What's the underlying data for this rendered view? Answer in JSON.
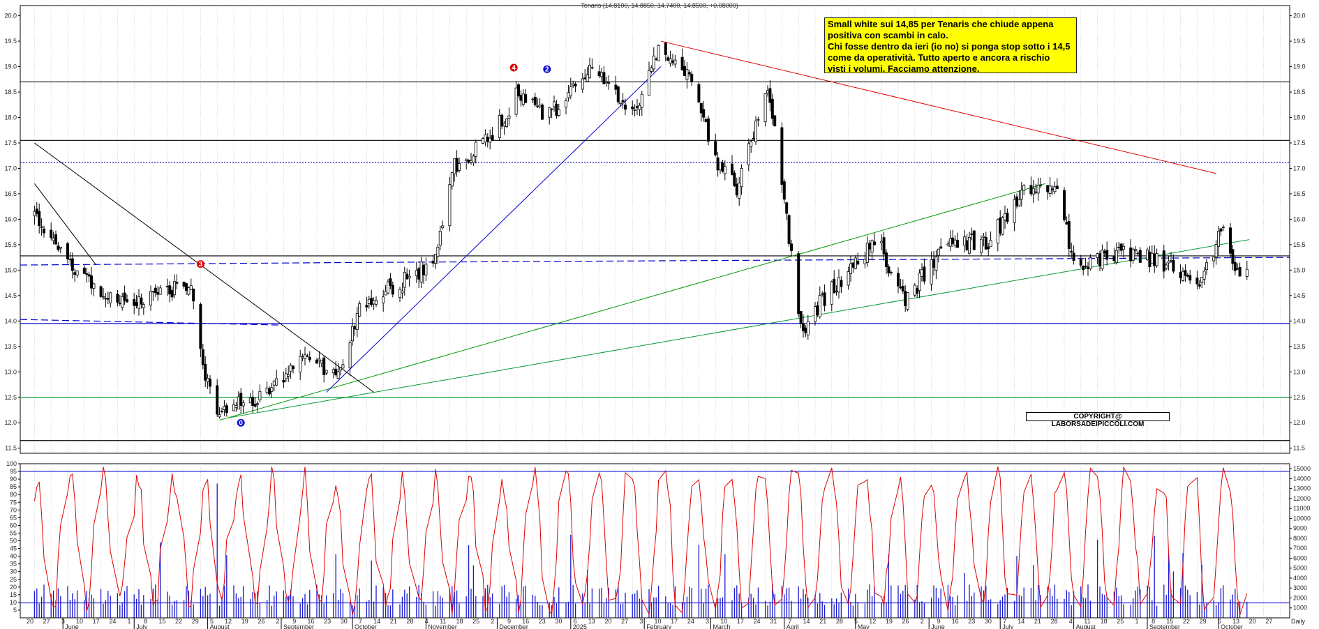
{
  "header": {
    "title": "Tenaris (14.8100, 14.8850, 14.7400, 14.8500, +0.08000)"
  },
  "note": {
    "lines": [
      "Small white sui 14,85 per Tenaris che chiude appena",
      "positiva con scambi in calo.",
      "Chi fosse dentro da ieri (io no) si ponga stop sotto i 14,5",
      "come da operatività. Tutto aperto e ancora a rischio",
      "visti i volumi. Facciamo attenzione."
    ],
    "background": "#ffff00"
  },
  "copyright": "COPYRIGHT@ LABORSADEIPICCOLI.COM",
  "wave_markers": [
    {
      "label": "4",
      "color": "#e00000"
    },
    {
      "label": "2",
      "color": "#1010d0"
    },
    {
      "label": "3",
      "color": "#e00000"
    },
    {
      "label": "0",
      "color": "#1010d0"
    }
  ],
  "time_axis": {
    "months": [
      "June",
      "July",
      "August",
      "September",
      "October",
      "November",
      "December",
      "2025",
      "February",
      "March",
      "April",
      "May",
      "June",
      "July",
      "August",
      "September",
      "October"
    ],
    "days": [
      "20",
      "27",
      "3",
      "10",
      "17",
      "24",
      "1",
      "8",
      "15",
      "22",
      "29",
      "5",
      "12",
      "19",
      "26",
      "2",
      "9",
      "16",
      "23",
      "30",
      "7",
      "14",
      "21",
      "28",
      "4",
      "11",
      "18",
      "25",
      "2",
      "9",
      "16",
      "23",
      "30",
      "6",
      "13",
      "20",
      "27",
      "3",
      "10",
      "17",
      "24",
      "3",
      "10",
      "17",
      "24",
      "31",
      "7",
      "14",
      "21",
      "28",
      "5",
      "12",
      "19",
      "26",
      "2",
      "9",
      "16",
      "23",
      "30",
      "7",
      "14",
      "21",
      "28",
      "4",
      "11",
      "18",
      "25",
      "1",
      "8",
      "15",
      "22",
      "29",
      "6",
      "13",
      "20",
      "27"
    ],
    "end_label": "Daily"
  },
  "chart_data": [
    {
      "type": "candlestick",
      "name": "price",
      "title": "Tenaris (14.8100, 14.8850, 14.7400, 14.8500, +0.08000)",
      "ylim": [
        11.4,
        20.2
      ],
      "yticks": [
        11.5,
        12.0,
        12.5,
        13.0,
        13.5,
        14.0,
        14.5,
        15.0,
        15.5,
        16.0,
        16.5,
        17.0,
        17.5,
        18.0,
        18.5,
        19.0,
        19.5,
        20.0
      ],
      "grid": true,
      "last_bar": {
        "open": 14.81,
        "high": 14.885,
        "low": 14.74,
        "close": 14.85,
        "change": 0.08
      },
      "key_points": [
        {
          "date": "2024-05-20",
          "close": 16.1
        },
        {
          "date": "2024-06-05",
          "close": 15.1
        },
        {
          "date": "2024-06-25",
          "close": 14.3
        },
        {
          "date": "2024-07-25",
          "close": 14.7
        },
        {
          "date": "2024-07-31",
          "close": 13.0
        },
        {
          "date": "2024-08-05",
          "close": 12.3
        },
        {
          "date": "2024-08-25",
          "close": 12.5
        },
        {
          "date": "2024-09-10",
          "close": 13.2
        },
        {
          "date": "2024-09-25",
          "close": 13.0
        },
        {
          "date": "2024-10-05",
          "close": 14.4
        },
        {
          "date": "2024-10-20",
          "close": 14.7
        },
        {
          "date": "2024-11-05",
          "close": 15.2
        },
        {
          "date": "2024-11-12",
          "close": 17.0
        },
        {
          "date": "2024-11-28",
          "close": 17.6
        },
        {
          "date": "2024-12-10",
          "close": 18.5
        },
        {
          "date": "2024-12-22",
          "close": 18.0
        },
        {
          "date": "2025-01-10",
          "close": 19.0
        },
        {
          "date": "2025-01-27",
          "close": 18.0
        },
        {
          "date": "2025-02-08",
          "close": 19.4
        },
        {
          "date": "2025-02-20",
          "close": 18.8
        },
        {
          "date": "2025-03-05",
          "close": 17.0
        },
        {
          "date": "2025-03-12",
          "close": 16.6
        },
        {
          "date": "2025-03-25",
          "close": 18.7
        },
        {
          "date": "2025-04-02",
          "close": 16.0
        },
        {
          "date": "2025-04-08",
          "close": 13.8
        },
        {
          "date": "2025-04-20",
          "close": 14.6
        },
        {
          "date": "2025-05-10",
          "close": 15.6
        },
        {
          "date": "2025-05-22",
          "close": 14.4
        },
        {
          "date": "2025-06-10",
          "close": 15.6
        },
        {
          "date": "2025-06-25",
          "close": 15.5
        },
        {
          "date": "2025-07-10",
          "close": 16.5
        },
        {
          "date": "2025-07-25",
          "close": 16.5
        },
        {
          "date": "2025-08-02",
          "close": 15.0
        },
        {
          "date": "2025-08-20",
          "close": 15.4
        },
        {
          "date": "2025-09-05",
          "close": 15.2
        },
        {
          "date": "2025-09-22",
          "close": 14.7
        },
        {
          "date": "2025-10-03",
          "close": 15.8
        },
        {
          "date": "2025-10-08",
          "close": 15.1
        },
        {
          "date": "2025-10-13",
          "close": 14.85
        }
      ],
      "horizontal_lines": [
        {
          "y": 18.7,
          "color": "#000000"
        },
        {
          "y": 17.55,
          "color": "#000000"
        },
        {
          "y": 17.12,
          "color": "#0000cc",
          "style": "dotted"
        },
        {
          "y": 15.28,
          "color": "#000000"
        },
        {
          "y": 13.95,
          "color": "#0000cc"
        },
        {
          "y": 12.5,
          "color": "#009933"
        },
        {
          "y": 11.65,
          "color": "#000000"
        }
      ],
      "trendlines": [
        {
          "from": [
            "2025-02-08",
            19.5
          ],
          "to": [
            "2025-09-30",
            16.9
          ],
          "color": "#e00000"
        },
        {
          "from": [
            "2024-08-06",
            12.05
          ],
          "to": [
            "2025-07-20",
            16.7
          ],
          "color": "#009900"
        },
        {
          "from": [
            "2024-08-10",
            12.1
          ],
          "to": [
            "2025-10-14",
            15.6
          ],
          "color": "#009933"
        },
        {
          "from": [
            "2024-09-20",
            12.6
          ],
          "to": [
            "2025-02-08",
            19.0
          ],
          "color": "#0000cc"
        },
        {
          "from": [
            "2024-05-20",
            17.5
          ],
          "to": [
            "2024-10-10",
            12.6
          ],
          "color": "#000000"
        },
        {
          "from": [
            "2024-05-20",
            16.7
          ],
          "to": [
            "2024-06-15",
            15.1
          ],
          "color": "#000000"
        }
      ]
    },
    {
      "type": "line",
      "name": "oscillator",
      "ylim": [
        0,
        100
      ],
      "yticks": [
        5,
        10,
        15,
        20,
        25,
        30,
        35,
        40,
        45,
        50,
        55,
        60,
        65,
        70,
        75,
        80,
        85,
        90,
        95,
        100
      ],
      "color": "#e00000",
      "reference_line": 95
    },
    {
      "type": "bar",
      "name": "volume",
      "ylim": [
        0,
        15500
      ],
      "yticks": [
        1000,
        2000,
        3000,
        4000,
        5000,
        6000,
        7000,
        8000,
        9000,
        10000,
        11000,
        12000,
        13000,
        14000,
        15000
      ],
      "color": "#1a1ad0",
      "reference_line": 1500
    }
  ]
}
